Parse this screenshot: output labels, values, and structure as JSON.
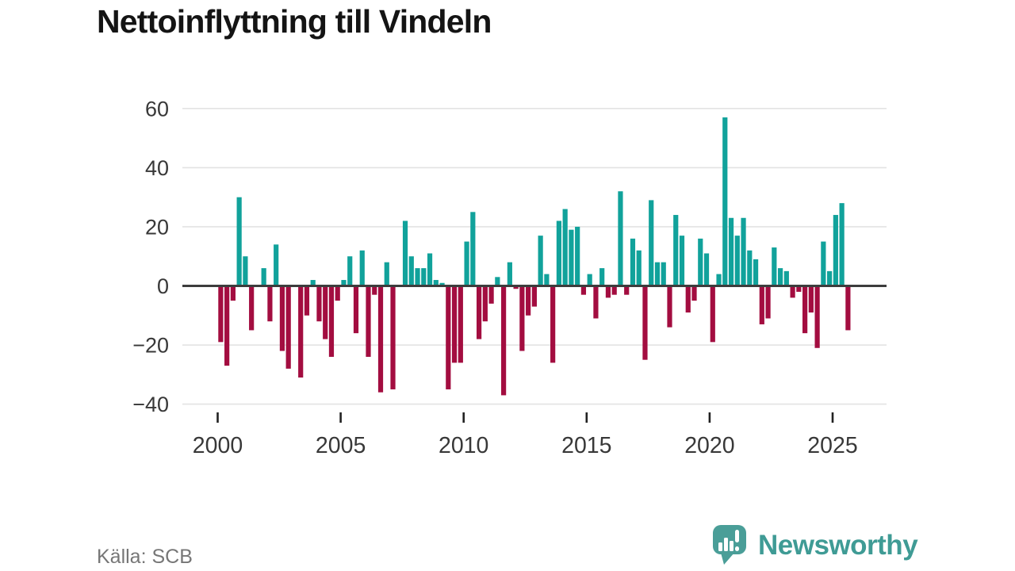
{
  "header": {
    "title": "Nettoinflyttning till Vindeln"
  },
  "footer": {
    "source_label": "Källa: SCB",
    "brand_name": "Newsworthy"
  },
  "colors": {
    "positive": "#11a29b",
    "negative": "#a30d40",
    "zero_line": "#3d3d3d",
    "gridline": "#e3e3e3",
    "axis_text": "#383838",
    "title_text": "#141414",
    "source_text": "#767676",
    "brand_text": "#3f9b95",
    "brand_bubble": "#4a9e98",
    "background": "#ffffff"
  },
  "chart_data": {
    "type": "bar",
    "title": "Nettoinflyttning till Vindeln",
    "frequency": "quarterly",
    "x_start": "2000-Q1",
    "x_end": "2025-Q3",
    "values": [
      -19,
      -27,
      -5,
      30,
      10,
      -15,
      0,
      6,
      -12,
      14,
      -22,
      -28,
      0,
      -31,
      -10,
      2,
      -12,
      -18,
      -24,
      -5,
      2,
      10,
      -16,
      12,
      -24,
      -3,
      -36,
      8,
      -35,
      0,
      22,
      10,
      6,
      6,
      11,
      2,
      1,
      -35,
      -26,
      -26,
      15,
      25,
      -18,
      -12,
      -6,
      3,
      -37,
      8,
      -1,
      -22,
      -10,
      -7,
      17,
      4,
      -26,
      22,
      26,
      19,
      20,
      -3,
      4,
      -11,
      6,
      -4,
      -3,
      32,
      -3,
      16,
      12,
      -25,
      29,
      8,
      8,
      -14,
      24,
      17,
      -9,
      -5,
      16,
      11,
      -19,
      4,
      57,
      23,
      17,
      23,
      12,
      9,
      -13,
      -11,
      13,
      6,
      5,
      -4,
      -2,
      -16,
      -9,
      -21,
      15,
      5,
      24,
      28,
      -15
    ],
    "x_tick_labels": [
      "2000",
      "2005",
      "2010",
      "2015",
      "2020",
      "2025"
    ],
    "y_tick_labels": [
      "60",
      "40",
      "20",
      "0",
      "−20",
      "−40"
    ],
    "y_gridline_values": [
      60,
      40,
      20,
      0,
      -20,
      -40
    ],
    "ylim": [
      -45,
      65
    ],
    "grid": true,
    "legend": "none",
    "positive_color": "#11a29b",
    "negative_color": "#a30d40"
  }
}
